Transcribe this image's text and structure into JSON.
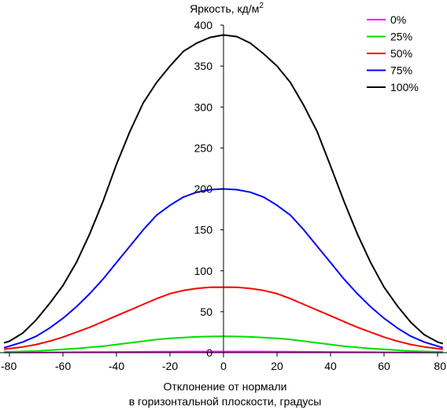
{
  "chart_data": {
    "type": "line",
    "title": "",
    "ylabel_main": "Яркость, кд/м",
    "ylabel_sup": "2",
    "xlabel_line1": "Отклонение от нормали",
    "xlabel_line2": "в горизонтальной плоскости, градусы",
    "xlim": [
      -80,
      80
    ],
    "ylim": [
      0,
      400
    ],
    "x_ticks": [
      -80,
      -60,
      -40,
      -20,
      0,
      20,
      40,
      60,
      80
    ],
    "y_ticks": [
      0,
      50,
      100,
      150,
      200,
      250,
      300,
      350,
      400
    ],
    "grid": false,
    "legend_position": "top-right",
    "x": [
      -82,
      -80,
      -75,
      -70,
      -65,
      -60,
      -55,
      -50,
      -45,
      -40,
      -35,
      -30,
      -25,
      -20,
      -15,
      -10,
      -5,
      0,
      5,
      10,
      15,
      20,
      25,
      30,
      35,
      40,
      45,
      50,
      55,
      60,
      65,
      70,
      75,
      80,
      82
    ],
    "series": [
      {
        "name": "0%",
        "color": "#ff00ff",
        "values": [
          0.2,
          0.2,
          0.3,
          0.3,
          0.4,
          0.5,
          0.6,
          0.7,
          0.8,
          0.9,
          1.0,
          1.1,
          1.2,
          1.2,
          1.3,
          1.3,
          1.3,
          1.3,
          1.3,
          1.3,
          1.3,
          1.2,
          1.2,
          1.1,
          1.0,
          0.9,
          0.8,
          0.7,
          0.6,
          0.5,
          0.4,
          0.3,
          0.3,
          0.2,
          0.2
        ]
      },
      {
        "name": "25%",
        "color": "#00dd00",
        "values": [
          1,
          1,
          1.5,
          2,
          3,
          4,
          5,
          6.5,
          8,
          10,
          12,
          14,
          16,
          17.5,
          18.5,
          19.3,
          19.8,
          20,
          19.8,
          19.3,
          18.5,
          17.5,
          16,
          14,
          12,
          10,
          8,
          6.5,
          5,
          4,
          3,
          2,
          1.5,
          1,
          1
        ]
      },
      {
        "name": "50%",
        "color": "#ff0000",
        "values": [
          4,
          5,
          7,
          10,
          14,
          19,
          25,
          31,
          38,
          45,
          52,
          59,
          66,
          72,
          76,
          78.5,
          79.8,
          80,
          79.8,
          78.5,
          76,
          72,
          66,
          59,
          52,
          45,
          38,
          31,
          25,
          19,
          14,
          10,
          7,
          5,
          4
        ]
      },
      {
        "name": "75%",
        "color": "#0000ff",
        "values": [
          6,
          8,
          13,
          20,
          30,
          42,
          56,
          72,
          90,
          110,
          130,
          150,
          168,
          180,
          190,
          196,
          199,
          200,
          199,
          196,
          190,
          180,
          168,
          150,
          130,
          110,
          90,
          72,
          56,
          42,
          30,
          20,
          13,
          8,
          6
        ]
      },
      {
        "name": "100%",
        "color": "#000000",
        "values": [
          12,
          14,
          24,
          40,
          60,
          82,
          110,
          145,
          185,
          230,
          270,
          305,
          330,
          350,
          368,
          378,
          385,
          388,
          386,
          378,
          365,
          350,
          330,
          302,
          270,
          228,
          185,
          145,
          110,
          80,
          57,
          37,
          22,
          13,
          11
        ]
      }
    ]
  }
}
